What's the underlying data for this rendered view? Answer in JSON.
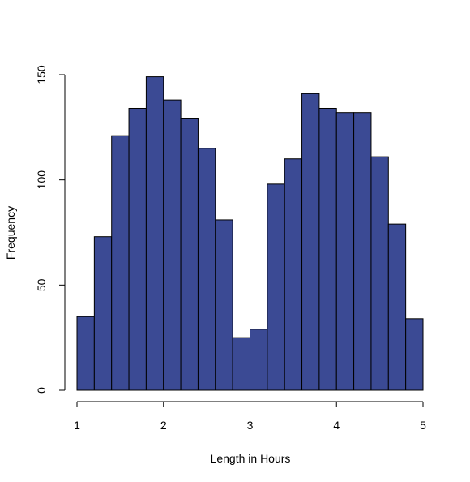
{
  "chart_data": {
    "type": "bar",
    "title": "",
    "xlabel": "Length in Hours",
    "ylabel": "Frequency",
    "bar_color": "#3b4a94",
    "bar_edge_color": "#000000",
    "bins": [
      {
        "x0": 1.0,
        "x1": 1.2,
        "value": 35
      },
      {
        "x0": 1.2,
        "x1": 1.4,
        "value": 73
      },
      {
        "x0": 1.4,
        "x1": 1.6,
        "value": 121
      },
      {
        "x0": 1.6,
        "x1": 1.8,
        "value": 134
      },
      {
        "x0": 1.8,
        "x1": 2.0,
        "value": 149
      },
      {
        "x0": 2.0,
        "x1": 2.2,
        "value": 138
      },
      {
        "x0": 2.2,
        "x1": 2.4,
        "value": 129
      },
      {
        "x0": 2.4,
        "x1": 2.6,
        "value": 115
      },
      {
        "x0": 2.6,
        "x1": 2.8,
        "value": 81
      },
      {
        "x0": 2.8,
        "x1": 3.0,
        "value": 25
      },
      {
        "x0": 3.0,
        "x1": 3.2,
        "value": 29
      },
      {
        "x0": 3.2,
        "x1": 3.4,
        "value": 98
      },
      {
        "x0": 3.4,
        "x1": 3.6,
        "value": 110
      },
      {
        "x0": 3.6,
        "x1": 3.8,
        "value": 141
      },
      {
        "x0": 3.8,
        "x1": 4.0,
        "value": 134
      },
      {
        "x0": 4.0,
        "x1": 4.2,
        "value": 132
      },
      {
        "x0": 4.2,
        "x1": 4.4,
        "value": 132
      },
      {
        "x0": 4.4,
        "x1": 4.6,
        "value": 111
      },
      {
        "x0": 4.6,
        "x1": 4.8,
        "value": 79
      },
      {
        "x0": 4.8,
        "x1": 5.0,
        "value": 34
      }
    ],
    "xlim": [
      1,
      5
    ],
    "ylim": [
      0,
      150
    ],
    "x_ticks": [
      1,
      2,
      3,
      4,
      5
    ],
    "y_ticks": [
      0,
      50,
      100,
      150
    ],
    "grid": false,
    "legend": "none"
  }
}
